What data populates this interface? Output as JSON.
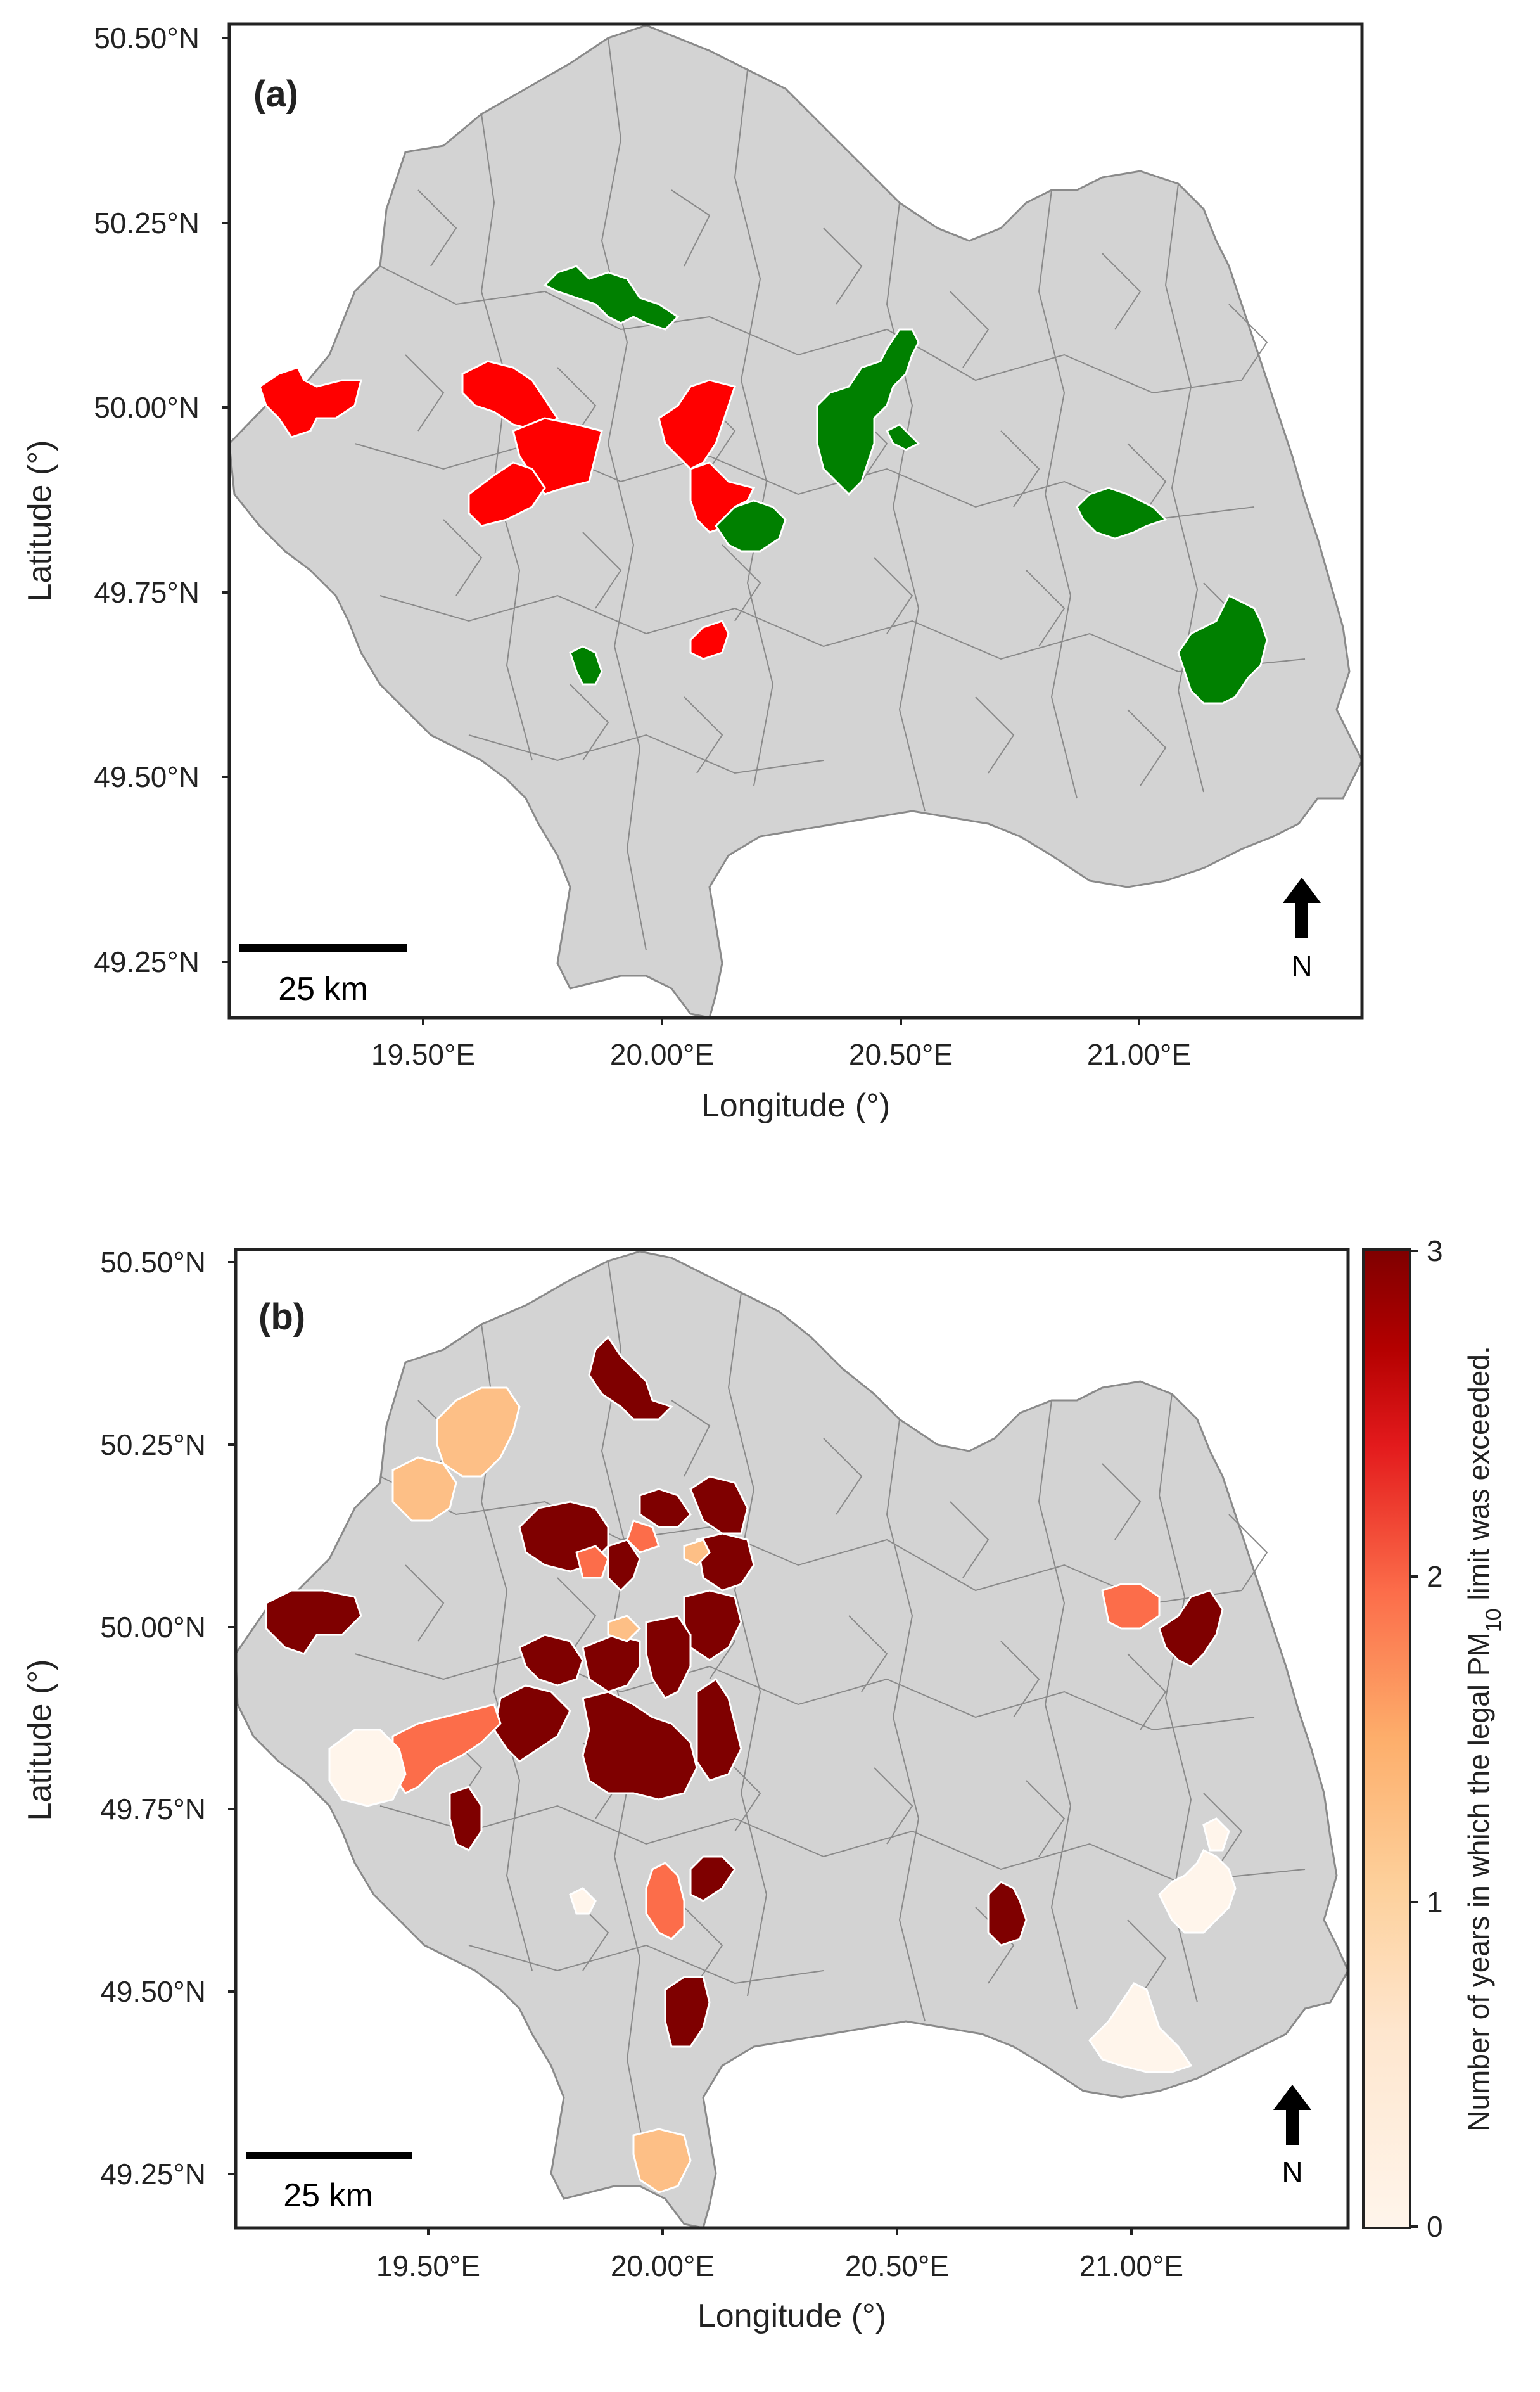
{
  "colors": {
    "land": "#d3d3d3",
    "boundary": "#8a8a8a",
    "frame": "#222222",
    "panel_a_red": "#ff0000",
    "panel_a_green": "#008000",
    "colormap": [
      "#fff5eb",
      "#fdd09b",
      "#fc8d59",
      "#e34a33",
      "#b30000",
      "#7f0000"
    ]
  },
  "panel_a": {
    "tag": "(a)",
    "xlabel": "Longitude (°)",
    "ylabel": "Latitude (°)",
    "lat_ticks": [
      "50.50°N",
      "50.25°N",
      "50.00°N",
      "49.75°N",
      "49.50°N",
      "49.25°N"
    ],
    "lon_ticks": [
      "19.50°E",
      "20.00°E",
      "20.50°E",
      "21.00°E"
    ],
    "scale_label": "25 km",
    "north_label": "N"
  },
  "panel_b": {
    "tag": "(b)",
    "xlabel": "Longitude (°)",
    "ylabel": "Latitude (°)",
    "lat_ticks": [
      "50.50°N",
      "50.25°N",
      "50.00°N",
      "49.75°N",
      "49.50°N",
      "49.25°N"
    ],
    "lon_ticks": [
      "19.50°E",
      "20.00°E",
      "20.50°E",
      "21.00°E"
    ],
    "scale_label": "25 km",
    "north_label": "N",
    "colorbar": {
      "label_prefix": "Number of years in which the legal PM",
      "label_sub": "10",
      "label_suffix": " limit was exceeded.",
      "ticks": [
        "0",
        "1",
        "2",
        "3"
      ],
      "range": [
        0,
        3
      ]
    },
    "highlighted_communes": {
      "years_3": 19,
      "years_2": 5,
      "years_1": 5,
      "years_0": 5
    }
  }
}
